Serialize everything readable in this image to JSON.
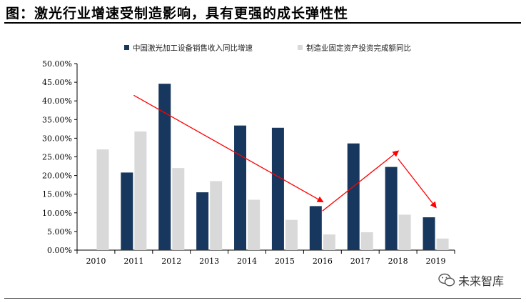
{
  "figure": {
    "title": "图：激光行业增速受制造影响，具有更强的成长弹性性",
    "watermark": "未来智库",
    "watermark_icon": "wechat-icon"
  },
  "colors": {
    "series1": "#17375e",
    "series2": "#d9d9d9",
    "trend_arrow": "#ff0000"
  },
  "chart_data": {
    "type": "bar",
    "categories": [
      "2010",
      "2011",
      "2012",
      "2013",
      "2014",
      "2015",
      "2016",
      "2017",
      "2018",
      "2019"
    ],
    "series": [
      {
        "name": "中国激光加工设备销售收入同比增速",
        "values": [
          null,
          20.8,
          44.6,
          15.5,
          33.4,
          32.8,
          11.8,
          28.6,
          22.3,
          8.8
        ]
      },
      {
        "name": "制造业固定资产投资完成额同比",
        "values": [
          27.0,
          31.8,
          22.0,
          18.5,
          13.5,
          8.1,
          4.2,
          4.8,
          9.5,
          3.1
        ]
      }
    ],
    "yticks": [
      "0.00%",
      "5.00%",
      "10.00%",
      "15.00%",
      "20.00%",
      "25.00%",
      "30.00%",
      "35.00%",
      "40.00%",
      "45.00%",
      "50.00%"
    ],
    "ylim": [
      0,
      50
    ],
    "legend_position": "top",
    "grid": false,
    "annotations": [
      {
        "type": "arrow",
        "from": [
          "2011",
          41.5
        ],
        "to": [
          "2016",
          13.0
        ]
      },
      {
        "type": "arrow",
        "from": [
          "2016",
          10.5
        ],
        "to": [
          "2018",
          26.5
        ]
      },
      {
        "type": "arrow",
        "from": [
          "2018",
          24.5
        ],
        "to": [
          "2019",
          11.5
        ]
      }
    ]
  }
}
